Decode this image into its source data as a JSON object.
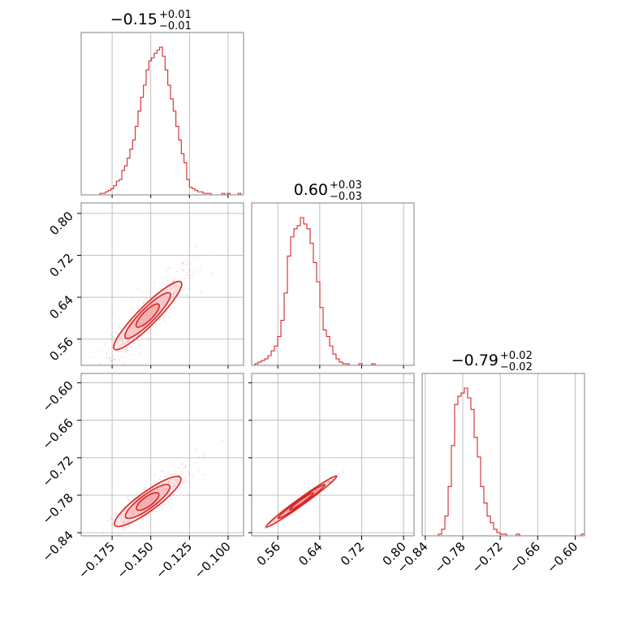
{
  "chart_data": {
    "type": "corner",
    "colors": {
      "accent": "#d62728",
      "fill": "#f4a3a5",
      "grid": "#b0b0b0",
      "spine": "#808080"
    },
    "titles": [
      {
        "value": "−0.15",
        "plus": "+0.01",
        "minus": "−0.01"
      },
      {
        "value": "0.60",
        "plus": "+0.03",
        "minus": "−0.03"
      },
      {
        "value": "−0.79",
        "plus": "+0.02",
        "minus": "−0.02"
      }
    ],
    "params": [
      {
        "range": [
          -0.195,
          -0.09
        ],
        "ticks": [
          -0.175,
          -0.15,
          -0.125,
          -0.1
        ],
        "tick_labels": [
          "−0.175",
          "−0.150",
          "−0.125",
          "−0.100"
        ],
        "mean": -0.152,
        "sd": 0.0085
      },
      {
        "range": [
          0.51,
          0.82
        ],
        "ticks": [
          0.56,
          0.64,
          0.72,
          0.8
        ],
        "tick_labels": [
          "0.56",
          "0.64",
          "0.72",
          "0.80"
        ],
        "mean": 0.605,
        "sd": 0.028
      },
      {
        "range": [
          -0.845,
          -0.585
        ],
        "ticks": [
          -0.84,
          -0.78,
          -0.72,
          -0.66,
          -0.6
        ],
        "tick_labels": [
          "−0.84",
          "−0.78",
          "−0.72",
          "−0.66",
          "−0.60"
        ],
        "mean": -0.79,
        "sd": 0.017
      }
    ],
    "histograms": [
      {
        "param": 0,
        "edges_start": -0.195,
        "bin_width": 0.00175,
        "counts": [
          0,
          0,
          0,
          0,
          0,
          0,
          0,
          1,
          1,
          2,
          3,
          4,
          6,
          9,
          10,
          16,
          19,
          24,
          30,
          36,
          45,
          55,
          64,
          72,
          82,
          88,
          90,
          93,
          95,
          97,
          91,
          82,
          72,
          63,
          55,
          45,
          36,
          27,
          21,
          10,
          5,
          4,
          3,
          2,
          2,
          1,
          1,
          1,
          0,
          0,
          0,
          0,
          1,
          0,
          1,
          0,
          0,
          0,
          1,
          0
        ]
      },
      {
        "param": 1,
        "edges_start": 0.51,
        "bin_width": 0.0062,
        "counts": [
          0,
          1,
          2,
          3,
          4,
          6,
          9,
          12,
          18,
          28,
          45,
          68,
          80,
          85,
          87,
          92,
          88,
          85,
          76,
          64,
          52,
          36,
          22,
          18,
          12,
          7,
          4,
          2,
          1,
          1,
          0,
          0,
          0,
          1,
          0,
          0,
          0,
          1,
          0,
          0,
          0,
          0,
          0,
          0,
          0,
          0,
          0,
          0,
          0,
          0
        ]
      },
      {
        "param": 2,
        "edges_start": -0.845,
        "bin_width": 0.0052,
        "counts": [
          0,
          0,
          0,
          0,
          0,
          1,
          4,
          12,
          30,
          55,
          80,
          85,
          87,
          90,
          84,
          77,
          60,
          48,
          30,
          20,
          12,
          8,
          4,
          2,
          1,
          1,
          0,
          0,
          0,
          1,
          0,
          0,
          0,
          0,
          0,
          0,
          0,
          0,
          0,
          0,
          0,
          0,
          0,
          0,
          0,
          0,
          0,
          0,
          0,
          1
        ]
      }
    ],
    "pairs": [
      {
        "x_param": 0,
        "y_param": 1,
        "correlation": 0.9
      },
      {
        "x_param": 0,
        "y_param": 2,
        "correlation": 0.9
      },
      {
        "x_param": 1,
        "y_param": 2,
        "correlation": 0.995
      }
    ],
    "grid": true
  }
}
